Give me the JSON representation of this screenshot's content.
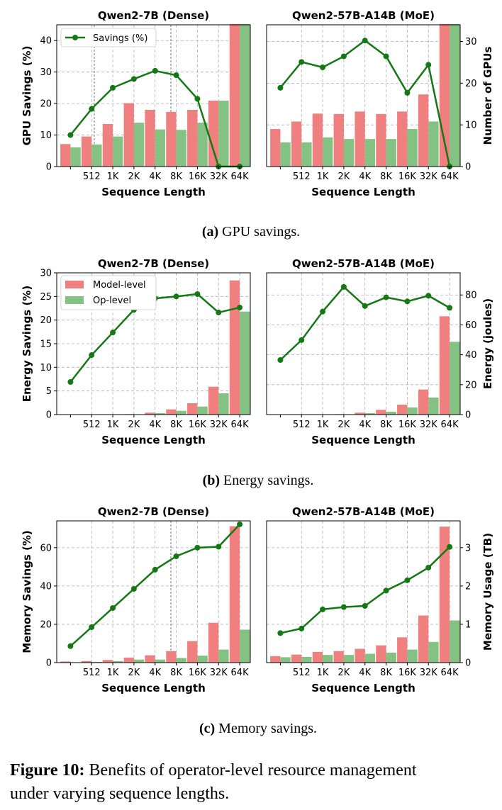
{
  "chart_data": [
    {
      "type": "bar+line",
      "title": "Qwen2-7B (Dense)",
      "xlabel": "Sequence Length",
      "ylabel": "GPU Savings (%)",
      "categories": [
        "",
        "512",
        "1K",
        "2K",
        "4K",
        "8K",
        "16K",
        "32K",
        "64K"
      ],
      "ylim": [
        0,
        45
      ],
      "yticks": [
        0,
        10,
        20,
        30,
        40
      ],
      "y2lim": [
        0,
        34
      ],
      "series": [
        {
          "name": "Model-level",
          "kind": "bar",
          "axis": "right",
          "values": [
            5.4,
            7.2,
            10.2,
            15.2,
            13.6,
            13.1,
            13.6,
            15.8,
            34.2
          ]
        },
        {
          "name": "Op-level",
          "kind": "bar",
          "axis": "right",
          "values": [
            4.6,
            5.3,
            7.2,
            10.5,
            8.9,
            8.8,
            10.5,
            15.8,
            34.2
          ]
        },
        {
          "name": "Savings (%)",
          "kind": "line",
          "axis": "left",
          "values": [
            10,
            18.3,
            25,
            27.8,
            30.4,
            29,
            21.5,
            0,
            0
          ]
        }
      ]
    },
    {
      "type": "bar+line",
      "title": "Qwen2-57B-A14B (MoE)",
      "xlabel": "Sequence Length",
      "y2label": "Number of GPUs",
      "categories": [
        "",
        "512",
        "1K",
        "2K",
        "4K",
        "8K",
        "16K",
        "32K",
        "64K"
      ],
      "ylim": [
        0,
        45
      ],
      "y2lim": [
        0,
        34
      ],
      "y2ticks": [
        0,
        10,
        20,
        30
      ],
      "series": [
        {
          "name": "Model-level",
          "kind": "bar",
          "axis": "right",
          "values": [
            9,
            10.8,
            12.7,
            12.6,
            13.2,
            12.6,
            13.2,
            17.3,
            34.2
          ]
        },
        {
          "name": "Op-level",
          "kind": "bar",
          "axis": "right",
          "values": [
            5.8,
            5.8,
            7,
            6.6,
            6.6,
            6.6,
            9,
            10.8,
            34.2
          ]
        },
        {
          "name": "Savings (%)",
          "kind": "line",
          "axis": "left",
          "values": [
            25,
            33.2,
            31.5,
            35,
            40,
            35,
            23.4,
            32.3,
            0
          ]
        }
      ]
    },
    {
      "type": "bar+line",
      "title": "Qwen2-7B (Dense)",
      "xlabel": "Sequence Length",
      "ylabel": "Energy Savings (%)",
      "categories": [
        "",
        "512",
        "1K",
        "2K",
        "4K",
        "8K",
        "16K",
        "32K",
        "64K"
      ],
      "ylim": [
        0,
        30
      ],
      "yticks": [
        0,
        5,
        10,
        15,
        20,
        25,
        30
      ],
      "y2lim": [
        0,
        94.8
      ],
      "series": [
        {
          "name": "Model-level",
          "kind": "bar",
          "axis": "left",
          "values": [
            0,
            0,
            0,
            0.1,
            0.4,
            1.1,
            2.4,
            5.9,
            28.4
          ]
        },
        {
          "name": "Op-level",
          "kind": "bar",
          "axis": "left",
          "values": [
            0,
            0,
            0,
            0.05,
            0.3,
            0.8,
            1.7,
            4.5,
            21.8
          ]
        },
        {
          "name": "Energy",
          "kind": "line",
          "axis": "right",
          "values": [
            21.8,
            39.8,
            54.9,
            70.1,
            77.7,
            79,
            80.6,
            68.3,
            71.6
          ]
        }
      ]
    },
    {
      "type": "bar+line",
      "title": "Qwen2-57B-A14B (MoE)",
      "xlabel": "Sequence Length",
      "y2label": "Energy (joules)",
      "categories": [
        "",
        "512",
        "1K",
        "2K",
        "4K",
        "8K",
        "16K",
        "32K",
        "64K"
      ],
      "ylim": [
        0,
        30
      ],
      "y2lim": [
        0,
        94.8
      ],
      "y2ticks": [
        0,
        20,
        40,
        60,
        80
      ],
      "series": [
        {
          "name": "Model-level",
          "kind": "bar",
          "axis": "left",
          "values": [
            0,
            0,
            0,
            0.1,
            0.4,
            1,
            2.1,
            5.3,
            20.8
          ]
        },
        {
          "name": "Op-level",
          "kind": "bar",
          "axis": "left",
          "values": [
            0,
            0,
            0,
            0.05,
            0.3,
            0.6,
            1.5,
            3.6,
            15.4
          ]
        },
        {
          "name": "Energy",
          "kind": "line",
          "axis": "right",
          "values": [
            36.5,
            49.8,
            68.9,
            85.4,
            72.6,
            78.4,
            75.7,
            79.5,
            71.4
          ]
        }
      ]
    },
    {
      "type": "bar+line",
      "title": "Qwen2-7B (Dense)",
      "xlabel": "Sequence Length",
      "ylabel": "Memory Savings (%)",
      "categories": [
        "",
        "512",
        "1K",
        "2K",
        "4K",
        "8K",
        "16K",
        "32K",
        "64K"
      ],
      "ylim": [
        0,
        74
      ],
      "yticks": [
        0,
        20,
        40,
        60
      ],
      "y2lim": [
        0,
        3.7
      ],
      "series": [
        {
          "name": "Model-level",
          "kind": "bar",
          "axis": "right",
          "values": [
            0.03,
            0.04,
            0.07,
            0.13,
            0.19,
            0.3,
            0.56,
            1.04,
            3.56
          ]
        },
        {
          "name": "Op-level",
          "kind": "bar",
          "axis": "right",
          "values": [
            0.01,
            0.02,
            0.04,
            0.08,
            0.08,
            0.12,
            0.18,
            0.34,
            0.86
          ]
        },
        {
          "name": "Memory Savings",
          "kind": "line",
          "axis": "left",
          "values": [
            8.6,
            18.5,
            28.5,
            38.5,
            48.5,
            55.5,
            60,
            60.5,
            72.2
          ]
        }
      ]
    },
    {
      "type": "bar+line",
      "title": "Qwen2-57B-A14B (MoE)",
      "xlabel": "Sequence Length",
      "y2label": "Memory Usage (TB)",
      "categories": [
        "",
        "512",
        "1K",
        "2K",
        "4K",
        "8K",
        "16K",
        "32K",
        "64K"
      ],
      "ylim": [
        0,
        74
      ],
      "y2lim": [
        0,
        3.7
      ],
      "y2ticks": [
        0,
        1,
        2,
        3
      ],
      "series": [
        {
          "name": "Model-level",
          "kind": "bar",
          "axis": "right",
          "values": [
            0.17,
            0.21,
            0.28,
            0.3,
            0.36,
            0.45,
            0.66,
            1.23,
            3.55
          ]
        },
        {
          "name": "Op-level",
          "kind": "bar",
          "axis": "right",
          "values": [
            0.14,
            0.15,
            0.2,
            0.2,
            0.23,
            0.26,
            0.34,
            0.54,
            1.1
          ]
        },
        {
          "name": "Memory Usage",
          "kind": "line",
          "axis": "right",
          "values": [
            0.77,
            0.89,
            1.39,
            1.45,
            1.48,
            1.88,
            2.15,
            2.48,
            3.02
          ]
        }
      ]
    }
  ],
  "legend": {
    "savings_label": "Savings (%)",
    "model_label": "Model-level",
    "op_label": "Op-level"
  },
  "colors": {
    "model_bar": "#f08080",
    "op_bar": "#83c283",
    "line": "#147814"
  },
  "captions": {
    "a_label": "(a)",
    "a_text": " GPU savings.",
    "b_label": "(b)",
    "b_text": " Energy savings.",
    "c_label": "(c)",
    "c_text": " Memory savings.",
    "figure_label": "Figure 10:",
    "figure_text_1": " Benefits of operator-level resource management",
    "figure_text_2": "under varying sequence lengths."
  }
}
